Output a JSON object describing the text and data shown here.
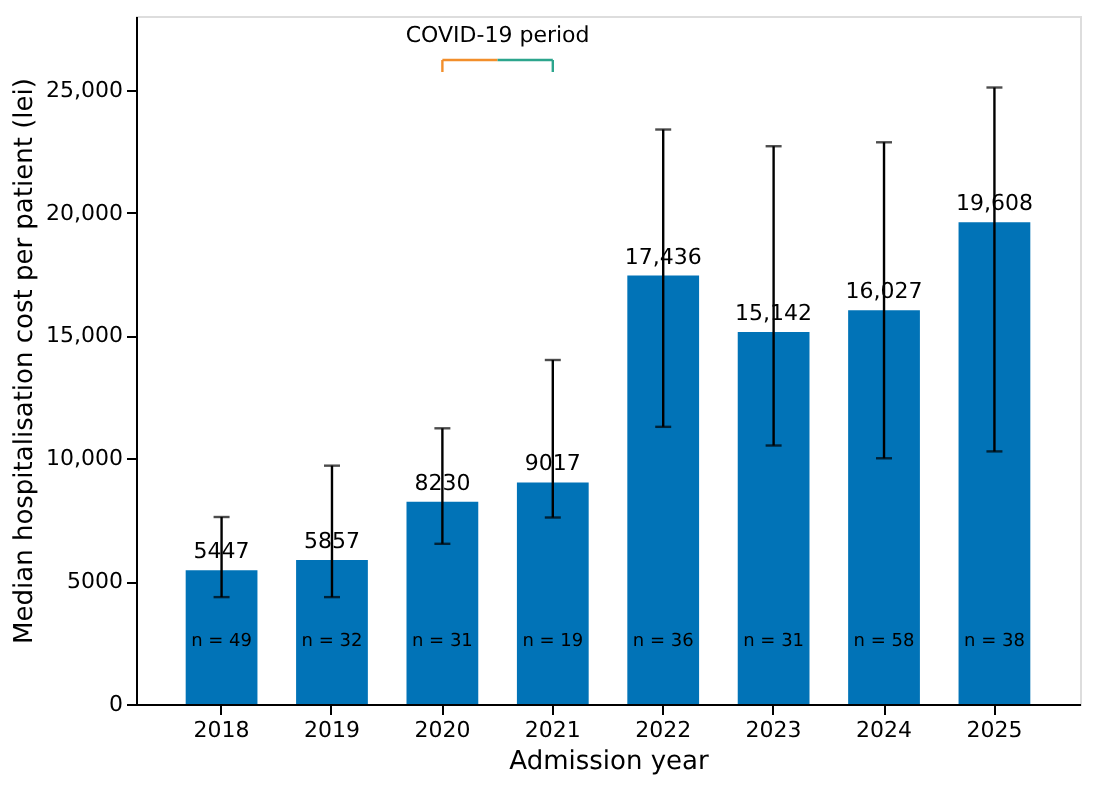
{
  "chart_data": {
    "type": "bar",
    "xlabel": "Admission year",
    "ylabel": "Median hospitalisation cost per patient (lei)",
    "categories": [
      "2018",
      "2019",
      "2020",
      "2021",
      "2022",
      "2023",
      "2024",
      "2025"
    ],
    "values": [
      5447,
      5857,
      8230,
      9017,
      17436,
      15142,
      16027,
      19608
    ],
    "value_labels": [
      "5447",
      "5857",
      "8230",
      "9017",
      "17,436",
      "15,142",
      "16,027",
      "19,608"
    ],
    "errors": [
      [
        4350,
        7610
      ],
      [
        4350,
        9700
      ],
      [
        6520,
        11220
      ],
      [
        7590,
        14000
      ],
      [
        11280,
        23380
      ],
      [
        10520,
        22700
      ],
      [
        10000,
        22860
      ],
      [
        10280,
        25090
      ]
    ],
    "color": "#0173b7",
    "ylim": [
      0,
      28000
    ],
    "yticks": [
      0,
      5000,
      {
        "value": 10000,
        "label": "10,000"
      },
      {
        "value": 15000,
        "label": "15,000"
      },
      {
        "value": 20000,
        "label": "20,000"
      },
      {
        "value": 25000,
        "label": "25,000"
      }
    ],
    "grid": false,
    "annotations": [
      "n = 49",
      "n = 32",
      "n = 31",
      "n = 19",
      "n = 36",
      "n = 31",
      "n = 58",
      "n = 38",
      "COVID-19 period"
    ]
  }
}
